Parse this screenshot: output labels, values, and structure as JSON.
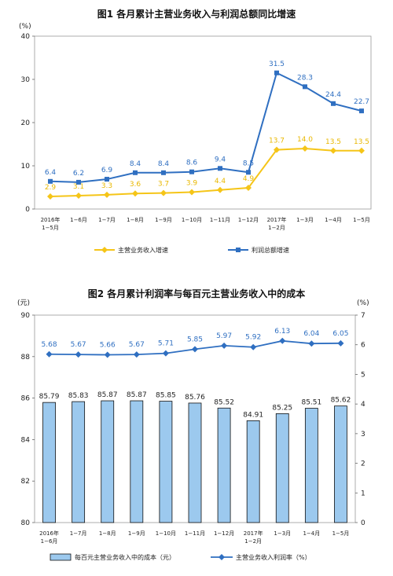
{
  "chart_data": [
    {
      "type": "line",
      "title": "图1  各月累计主营业务收入与利润总额同比增速",
      "unit": "(%)",
      "ylim": [
        0,
        40
      ],
      "yticks": [
        0,
        10,
        20,
        30,
        40
      ],
      "categories": [
        [
          "2016年",
          "1−5月"
        ],
        [
          "1−6月"
        ],
        [
          "1−7月"
        ],
        [
          "1−8月"
        ],
        [
          "1−9月"
        ],
        [
          "1−10月"
        ],
        [
          "1−11月"
        ],
        [
          "1−12月"
        ],
        [
          "2017年",
          "1−2月"
        ],
        [
          "1−3月"
        ],
        [
          "1−4月"
        ],
        [
          "1−5月"
        ]
      ],
      "series": [
        {
          "name": "主营业务收入增速",
          "color": "#f5c518",
          "marker": "diamond",
          "values": [
            2.9,
            3.1,
            3.3,
            3.6,
            3.7,
            3.9,
            4.4,
            4.9,
            13.7,
            14.0,
            13.5,
            13.5
          ]
        },
        {
          "name": "利润总额增速",
          "color": "#2f6fc1",
          "marker": "square",
          "values": [
            6.4,
            6.2,
            6.9,
            8.4,
            8.4,
            8.6,
            9.4,
            8.5,
            31.5,
            28.3,
            24.4,
            22.7
          ]
        }
      ],
      "legend_position": "bottom"
    },
    {
      "type": "bar+line",
      "title": "图2  各月累计利润率与每百元主营业务收入中的成本",
      "left_unit": "(元)",
      "right_unit": "(%)",
      "left_ylim": [
        80,
        90
      ],
      "left_yticks": [
        80,
        82,
        84,
        86,
        88,
        90
      ],
      "right_ylim": [
        0,
        7
      ],
      "right_yticks": [
        0,
        1,
        2,
        3,
        4,
        5,
        6,
        7
      ],
      "categories": [
        [
          "2016年",
          "1−6月"
        ],
        [
          "1−7月"
        ],
        [
          "1−8月"
        ],
        [
          "1−9月"
        ],
        [
          "1−10月"
        ],
        [
          "1−11月"
        ],
        [
          "1−12月"
        ],
        [
          "2017年",
          "1−2月"
        ],
        [
          "1−3月"
        ],
        [
          "1−4月"
        ],
        [
          "1−5月"
        ]
      ],
      "bar_series": {
        "name": "每百元主营业务收入中的成本（元）",
        "color": "#9cc9ee",
        "axis": "left",
        "values": [
          85.79,
          85.83,
          85.87,
          85.87,
          85.85,
          85.76,
          85.52,
          84.91,
          85.25,
          85.51,
          85.62
        ]
      },
      "line_series": {
        "name": "主营业务收入利润率（%）",
        "color": "#2f6fc1",
        "axis": "right",
        "marker": "diamond",
        "values": [
          5.68,
          5.67,
          5.66,
          5.67,
          5.71,
          5.85,
          5.97,
          5.92,
          6.13,
          6.04,
          6.05
        ]
      },
      "legend_position": "bottom"
    }
  ]
}
